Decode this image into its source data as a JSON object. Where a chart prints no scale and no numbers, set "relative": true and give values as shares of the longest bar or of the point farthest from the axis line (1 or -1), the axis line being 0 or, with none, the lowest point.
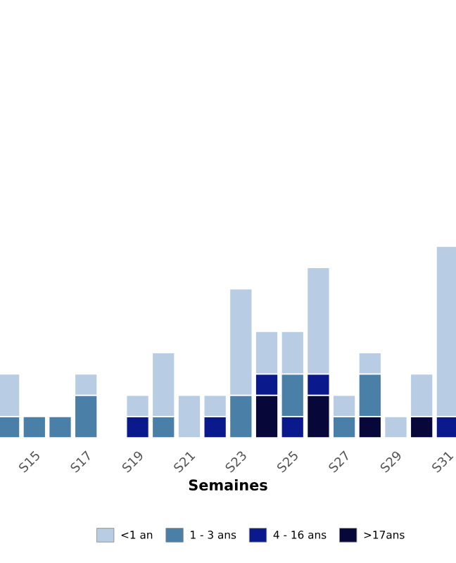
{
  "chart_data": {
    "type": "bar",
    "stacked": true,
    "relative": true,
    "xlabel": "Semaines",
    "legend": "bottom",
    "categories": [
      null,
      "S15",
      null,
      "S17",
      null,
      "S19",
      null,
      "S21",
      null,
      "S23",
      null,
      "S25",
      null,
      "S27",
      null,
      "S29",
      null,
      "S31"
    ],
    "series": [
      {
        "name": ">17ans",
        "color": "#07073a",
        "values": [
          0,
          0,
          0,
          0,
          0,
          0,
          0,
          0,
          0,
          0,
          0.222,
          0,
          0.222,
          0,
          0.111,
          0,
          0.111,
          0
        ]
      },
      {
        "name": "4 - 16 ans",
        "color": "#0a1a8c",
        "values": [
          0,
          0,
          0,
          0,
          0,
          0.111,
          0,
          0,
          0.111,
          0,
          0.111,
          0.111,
          0.111,
          0,
          0,
          0,
          0,
          0.111
        ]
      },
      {
        "name": "1 - 3 ans",
        "color": "#4a7fa8",
        "values": [
          0.111,
          0.111,
          0.111,
          0.222,
          0,
          0,
          0.111,
          0,
          0,
          0.222,
          0,
          0.222,
          0,
          0.111,
          0.222,
          0,
          0,
          0
        ]
      },
      {
        "name": "<1 an",
        "color": "#b8cce4",
        "values": [
          0.222,
          0,
          0,
          0.111,
          0,
          0.111,
          0.333,
          0.222,
          0.111,
          0.556,
          0.222,
          0.222,
          0.556,
          0.111,
          0.111,
          0.111,
          0.222,
          0.889
        ]
      }
    ]
  }
}
